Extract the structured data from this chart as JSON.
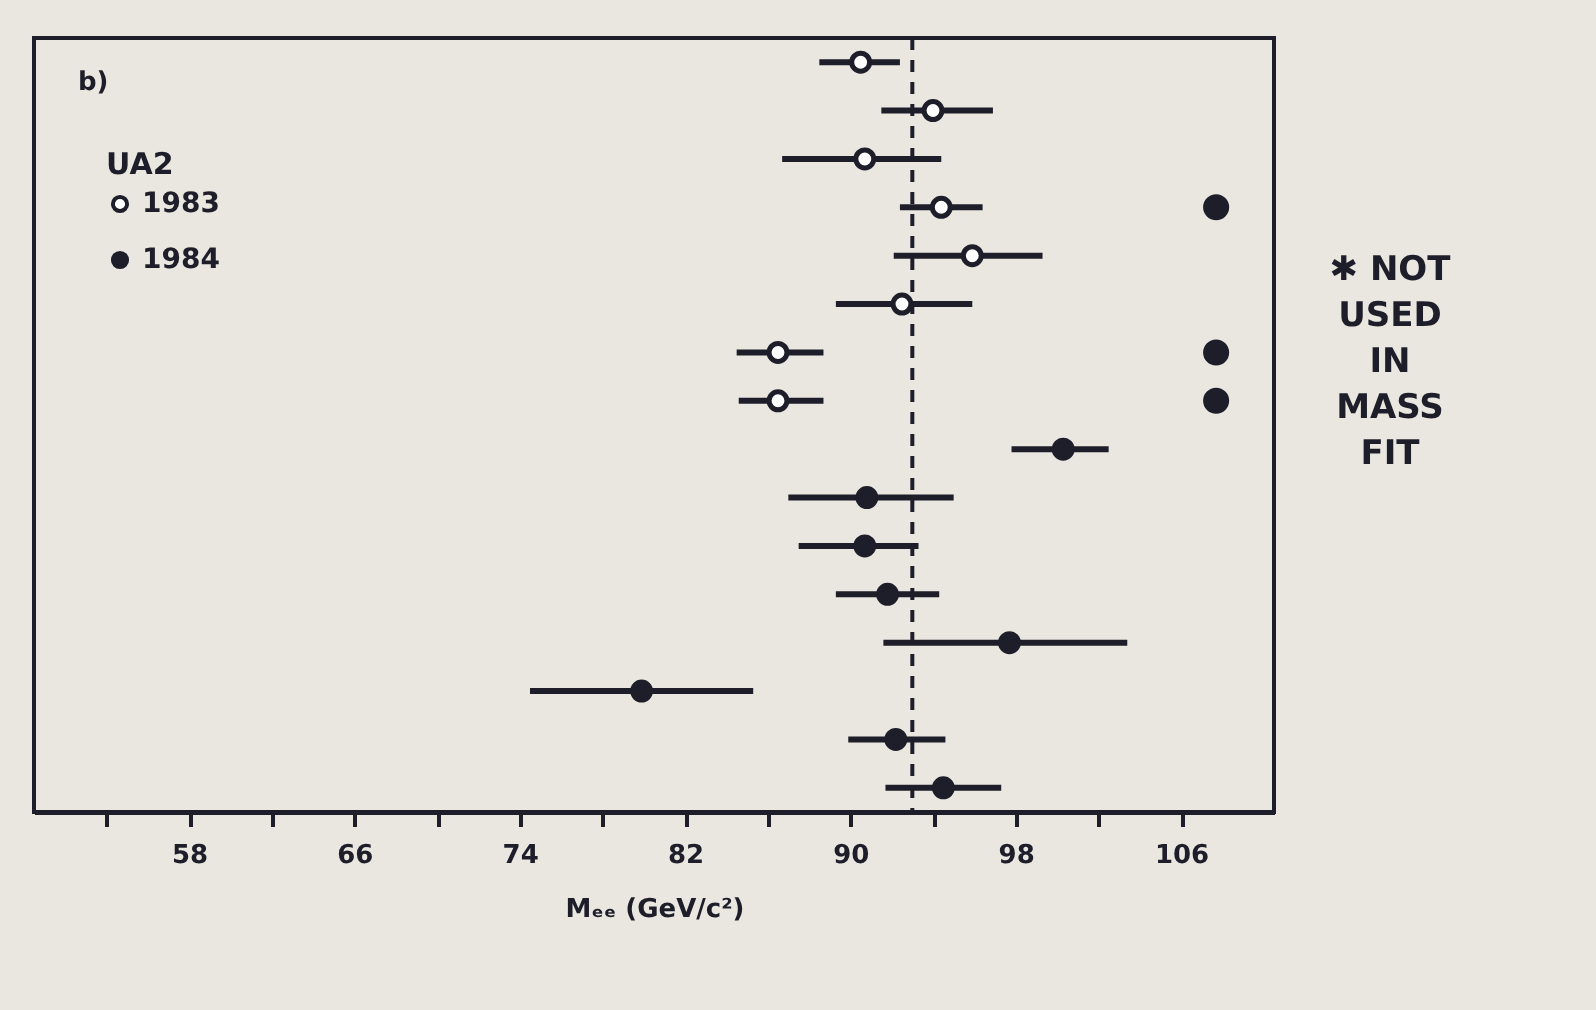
{
  "chart_data": {
    "type": "scatter",
    "orientation": "horizontal",
    "categories": [
      null,
      null,
      null,
      null,
      null,
      null,
      null,
      null,
      null,
      null,
      null,
      null,
      null,
      null,
      null,
      null
    ],
    "xlabel": "Mₑₑ (GeV/c²)",
    "xlim": [
      50.5,
      110.5
    ],
    "xticks": [
      {
        "value": 54,
        "label": null
      },
      58,
      {
        "value": 62,
        "label": null
      },
      66,
      {
        "value": 70,
        "label": null
      },
      74,
      {
        "value": 78,
        "label": null
      },
      82,
      {
        "value": 86,
        "label": null
      },
      90,
      {
        "value": 94,
        "label": null
      },
      98,
      {
        "value": 102,
        "label": null
      },
      106
    ],
    "tick_labels": "x",
    "grid": false,
    "legend": "top left",
    "legend_title": "UA2",
    "marker": "circle",
    "annotations": [
      "b)",
      "✱ NOT USED IN MASS FIT"
    ],
    "ref_lines": [
      {
        "axis": "x",
        "value": 93,
        "line_style": "dashed",
        "color": "#1e1e2a"
      }
    ],
    "series": [
      {
        "name": "1983",
        "color": "#1e1e2a",
        "marker": "open circle",
        "values": [
          90.5,
          94.0,
          90.7,
          94.4,
          95.9,
          92.5,
          86.5,
          86.5,
          null,
          null,
          null,
          null,
          null,
          null,
          null,
          null
        ],
        "errors": [
          [
            88.5,
            92.4
          ],
          [
            91.5,
            96.9
          ],
          [
            86.7,
            94.4
          ],
          [
            92.4,
            96.4
          ],
          [
            92.1,
            99.3
          ],
          [
            89.3,
            95.9
          ],
          [
            84.5,
            88.7
          ],
          [
            84.6,
            88.7
          ],
          null,
          null,
          null,
          null,
          null,
          null,
          null,
          null
        ]
      },
      {
        "name": "1984",
        "color": "#1e1e2a",
        "values": [
          null,
          null,
          null,
          null,
          null,
          null,
          null,
          null,
          100.3,
          90.8,
          90.7,
          91.8,
          97.7,
          79.9,
          92.2,
          94.5
        ],
        "errors": [
          null,
          null,
          null,
          null,
          null,
          null,
          null,
          null,
          [
            97.8,
            102.5
          ],
          [
            87.0,
            95.0
          ],
          [
            87.5,
            93.3
          ],
          [
            89.3,
            94.3
          ],
          [
            91.6,
            103.4
          ],
          [
            74.5,
            85.3
          ],
          [
            89.9,
            94.6
          ],
          [
            91.7,
            97.3
          ]
        ]
      },
      {
        "color": "#1e1e2a",
        "values": [
          null,
          null,
          null,
          107.7,
          null,
          null,
          107.7,
          107.7,
          null,
          null,
          null,
          null,
          null,
          null,
          null,
          null
        ]
      }
    ]
  }
}
